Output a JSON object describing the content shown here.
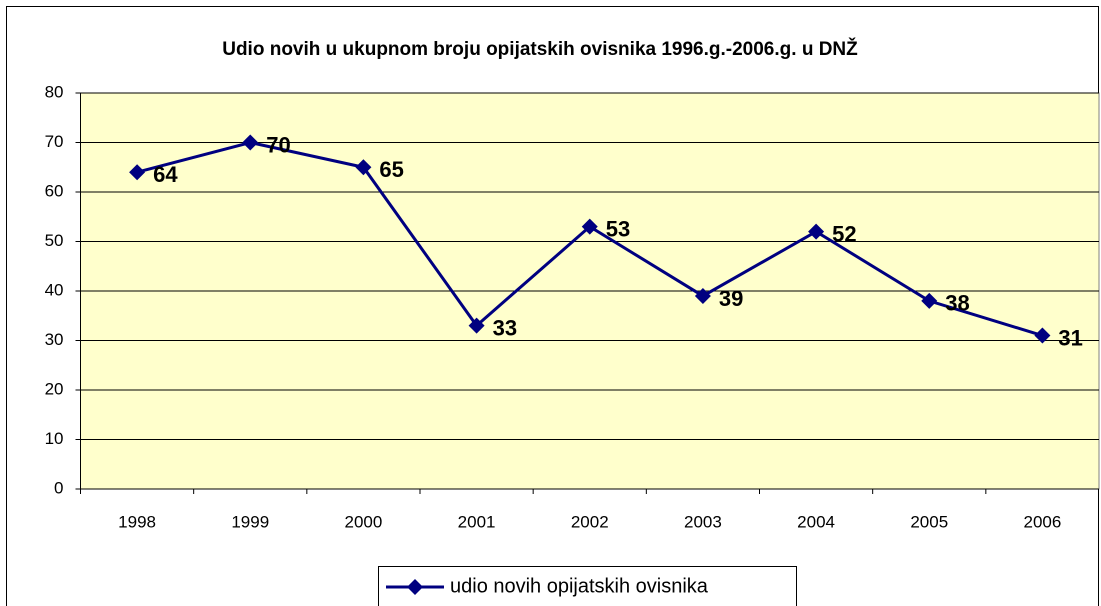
{
  "chart_data": {
    "type": "line",
    "title": "Udio novih u ukupnom broju opijatskih ovisnika 1996.g.-2006.g. u DNŽ",
    "categories": [
      "1998",
      "1999",
      "2000",
      "2001",
      "2002",
      "2003",
      "2004",
      "2005",
      "2006"
    ],
    "series": [
      {
        "name": "udio novih opijatskih ovisnika",
        "color": "#000080",
        "values": [
          64,
          70,
          65,
          33,
          53,
          39,
          52,
          38,
          31
        ]
      }
    ],
    "ylim": [
      0,
      80
    ],
    "yticks": [
      0,
      10,
      20,
      30,
      40,
      50,
      60,
      70,
      80
    ],
    "grid": true,
    "plot_background": "#ffffcc",
    "legend": "bottom"
  }
}
